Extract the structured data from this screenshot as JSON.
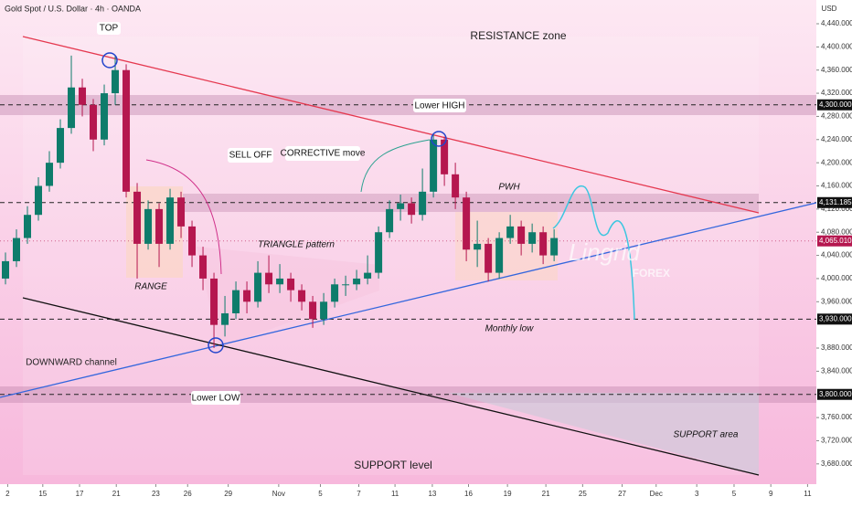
{
  "chart_data": {
    "type": "candlestick",
    "title": "Gold Spot / U.S. Dollar · 4h · OANDA",
    "currency": "USD",
    "colors": {
      "up": "#0e7c6b",
      "down": "#b5174f"
    },
    "open": [
      4000,
      4030,
      4070,
      4110,
      4160,
      4200,
      4260,
      4330,
      4300,
      4240,
      4320,
      4360,
      4150,
      4060,
      4120,
      4060,
      4140,
      4090,
      4040,
      4000,
      3920,
      3940,
      3980,
      3960,
      4010,
      3990,
      4000,
      3980,
      3960,
      3930,
      3960,
      3990,
      3990,
      4000,
      4010,
      4080,
      4120,
      4130,
      4110,
      4150,
      4240,
      4180,
      4140,
      4050,
      4060,
      4010,
      4070,
      4090,
      4060,
      4080,
      4040
    ],
    "high": [
      4045,
      4085,
      4125,
      4175,
      4220,
      4275,
      4385,
      4345,
      4310,
      4335,
      4385,
      4370,
      4165,
      4135,
      4130,
      4155,
      4150,
      4100,
      4055,
      4010,
      3970,
      3995,
      3995,
      4030,
      4040,
      4025,
      4010,
      3990,
      3970,
      3975,
      4000,
      4005,
      4015,
      4040,
      4090,
      4135,
      4145,
      4140,
      4190,
      4250,
      4245,
      4200,
      4150,
      4100,
      4070,
      4080,
      4110,
      4100,
      4095,
      4090,
      4085
    ],
    "low": [
      3990,
      4020,
      4060,
      4100,
      4150,
      4190,
      4250,
      4280,
      4220,
      4230,
      4300,
      4140,
      4000,
      4050,
      4020,
      4050,
      4070,
      4020,
      3980,
      3880,
      3900,
      3930,
      3940,
      3950,
      3975,
      3975,
      3960,
      3945,
      3915,
      3920,
      3950,
      3970,
      3980,
      3990,
      4000,
      4070,
      4100,
      4095,
      4100,
      4140,
      4160,
      4120,
      4030,
      4020,
      3995,
      4000,
      4060,
      4040,
      4045,
      4025,
      4030
    ],
    "close": [
      4030,
      4070,
      4110,
      4160,
      4200,
      4260,
      4330,
      4300,
      4240,
      4320,
      4360,
      4150,
      4060,
      4120,
      4060,
      4140,
      4090,
      4040,
      4000,
      3920,
      3940,
      3980,
      3960,
      4010,
      3990,
      4000,
      3980,
      3960,
      3930,
      3960,
      3990,
      3990,
      4000,
      4010,
      4080,
      4120,
      4130,
      4110,
      4150,
      4240,
      4180,
      4140,
      4050,
      4060,
      4010,
      4070,
      4090,
      4060,
      4080,
      4040,
      4070
    ],
    "ylim": [
      3645,
      4481
    ],
    "yticks": [
      {
        "value": 4440,
        "label": "4,440.000"
      },
      {
        "value": 4400,
        "label": "4,400.000"
      },
      {
        "value": 4360,
        "label": "4,360.000"
      },
      {
        "value": 4320,
        "label": "4,320.000"
      },
      {
        "value": 4280,
        "label": "4,280.000"
      },
      {
        "value": 4240,
        "label": "4,240.000"
      },
      {
        "value": 4200,
        "label": "4,200.000"
      },
      {
        "value": 4160,
        "label": "4,160.000"
      },
      {
        "value": 4120,
        "label": "4,120.000"
      },
      {
        "value": 4080,
        "label": "4,080.000"
      },
      {
        "value": 4040,
        "label": "4,040.000"
      },
      {
        "value": 4000,
        "label": "4,000.000"
      },
      {
        "value": 3960,
        "label": "3,960.000"
      },
      {
        "value": 3880,
        "label": "3,880.000"
      },
      {
        "value": 3840,
        "label": "3,840.000"
      },
      {
        "value": 3760,
        "label": "3,760.000"
      },
      {
        "value": 3720,
        "label": "3,720.000"
      },
      {
        "value": 3680,
        "label": "3,680.000"
      }
    ],
    "levels": [
      {
        "value": 4300,
        "label": "4,300.000"
      },
      {
        "value": 4131.185,
        "label": "4,131.185"
      },
      {
        "value": 3930,
        "label": "3,930.000"
      },
      {
        "value": 3800,
        "label": "3,800.000"
      }
    ],
    "last_price": {
      "value": 4065.01,
      "label": "4,065.010"
    },
    "xlim": [
      0,
      74.4
    ],
    "xticks": [
      {
        "value": 0.7,
        "label": "2"
      },
      {
        "value": 3.9,
        "label": "15"
      },
      {
        "value": 7.25,
        "label": "17"
      },
      {
        "value": 10.6,
        "label": "21"
      },
      {
        "value": 14.2,
        "label": "23"
      },
      {
        "value": 17.1,
        "label": "26"
      },
      {
        "value": 20.8,
        "label": "29"
      },
      {
        "value": 25.4,
        "label": "Nov"
      },
      {
        "value": 29.2,
        "label": "5"
      },
      {
        "value": 32.7,
        "label": "7"
      },
      {
        "value": 36,
        "label": "11"
      },
      {
        "value": 39.4,
        "label": "13"
      },
      {
        "value": 42.7,
        "label": "16"
      },
      {
        "value": 46.25,
        "label": "19"
      },
      {
        "value": 49.75,
        "label": "21"
      },
      {
        "value": 53.1,
        "label": "25"
      },
      {
        "value": 56.7,
        "label": "27"
      },
      {
        "value": 59.8,
        "label": "Dec"
      },
      {
        "value": 63.5,
        "label": "3"
      },
      {
        "value": 66.9,
        "label": "5"
      },
      {
        "value": 70.25,
        "label": "9"
      },
      {
        "value": 73.6,
        "label": "11"
      }
    ],
    "annotations": {
      "top": "TOP",
      "resistance": "RESISTANCE zone",
      "lower_high": "Lower HIGH",
      "sell_off": "SELL OFF",
      "corrective": "CORRECTIVE move",
      "pwh": "PWH",
      "triangle": "TRIANGLE pattern",
      "range": "RANGE",
      "monthly_low": "Monthly low",
      "downward": "DOWNWARD channel",
      "lower_low": "Lower LOW",
      "support_level": "SUPPORT level",
      "support_area": "SUPPORT area",
      "brand": "Lingrid",
      "brand_sub": "FOREX"
    }
  }
}
